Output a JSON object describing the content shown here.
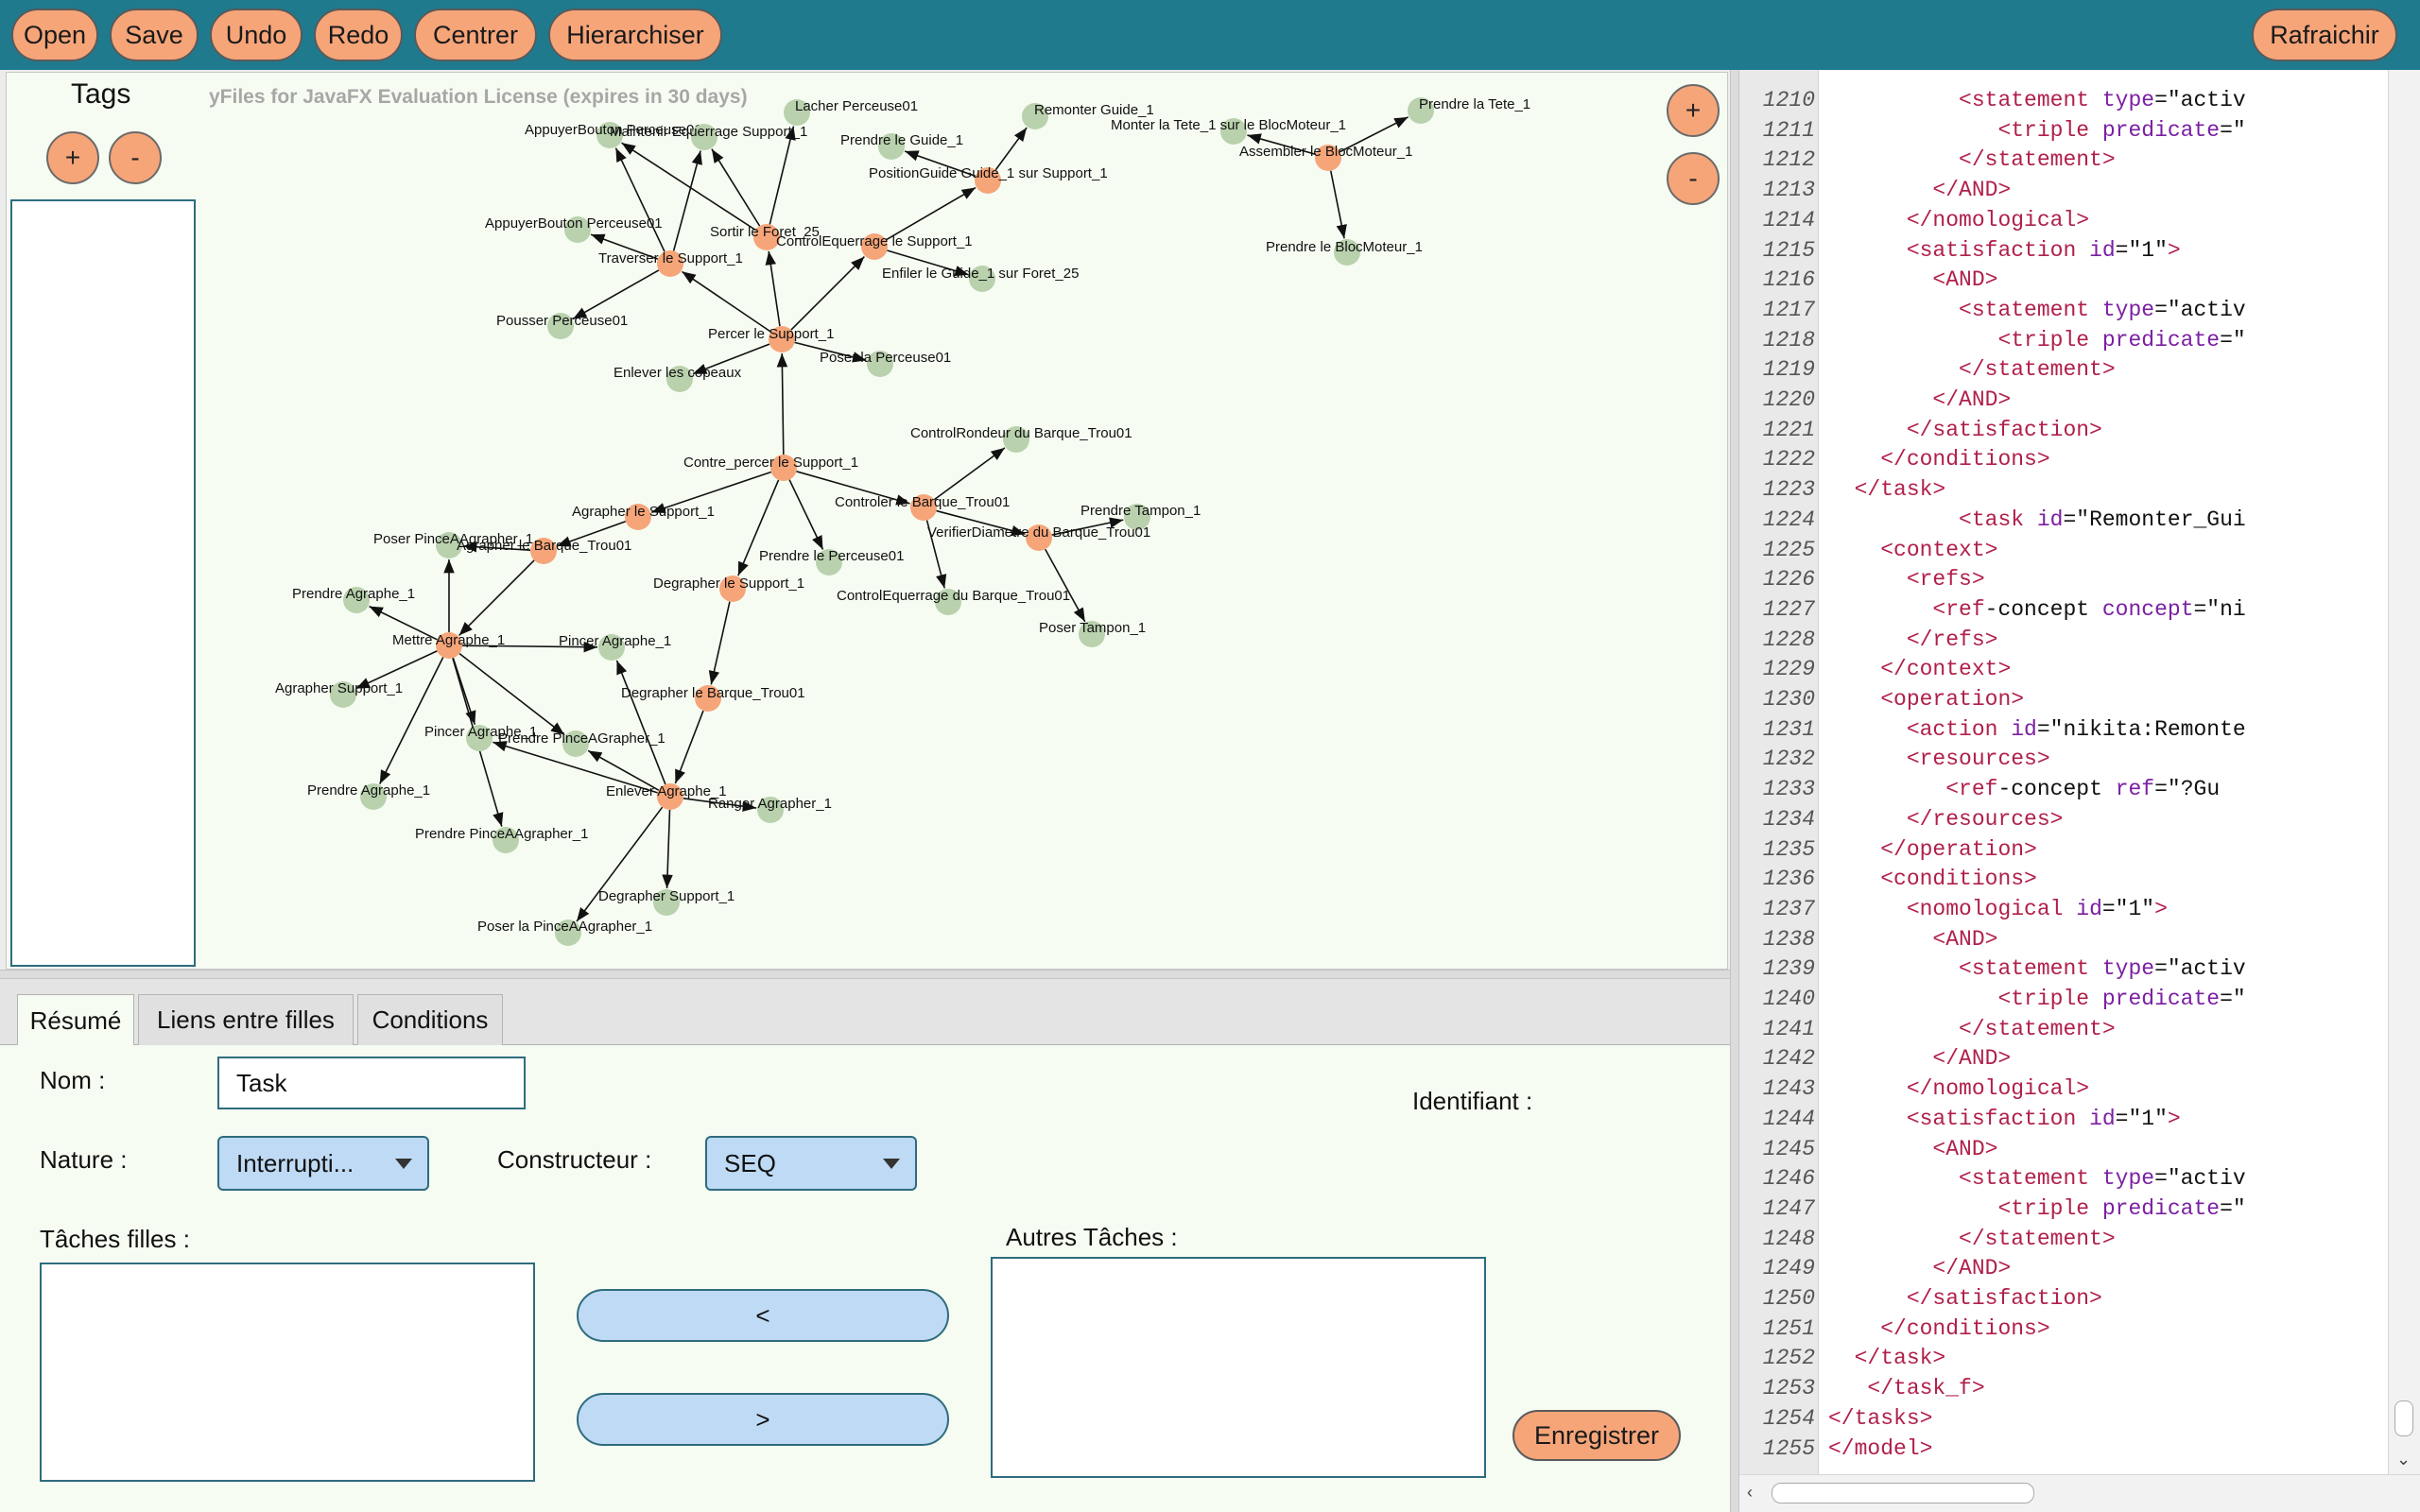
{
  "toolbar": {
    "open": "Open",
    "save": "Save",
    "undo": "Undo",
    "redo": "Redo",
    "center": "Centrer",
    "hierarchize": "Hierarchiser",
    "refresh": "Rafraichir"
  },
  "tags": {
    "title": "Tags",
    "add": "+",
    "remove": "-"
  },
  "graph": {
    "watermark": "yFiles for JavaFX Evaluation License (expires in 30 days)",
    "zoom_in": "+",
    "zoom_out": "-",
    "nodes": [
      {
        "id": "lacher",
        "label": "Lacher Perceuse01",
        "type": "leaf"
      },
      {
        "id": "appBtn1",
        "label": "AppuyerBouton Perceuse01",
        "type": "leaf"
      },
      {
        "id": "maintenir",
        "label": "Maintenir Equerrage Support_1",
        "type": "leaf"
      },
      {
        "id": "remonter",
        "label": "Remonter Guide_1",
        "type": "leaf"
      },
      {
        "id": "prendreGuide",
        "label": "Prendre le Guide_1",
        "type": "leaf"
      },
      {
        "id": "positionGuide",
        "label": "PositionGuide Guide_1 sur Support_1",
        "type": "task"
      },
      {
        "id": "appBtn2",
        "label": "AppuyerBouton Perceuse01",
        "type": "leaf"
      },
      {
        "id": "sortir",
        "label": "Sortir le Foret_25",
        "type": "task"
      },
      {
        "id": "controlEq",
        "label": "ControlEquerrage le Support_1",
        "type": "task"
      },
      {
        "id": "traverser",
        "label": "Traverser le Support_1",
        "type": "task"
      },
      {
        "id": "enfiler",
        "label": "Enfiler le Guide_1 sur Foret_25",
        "type": "leaf"
      },
      {
        "id": "pousser",
        "label": "Pousser Perceuse01",
        "type": "leaf"
      },
      {
        "id": "percer",
        "label": "Percer le Support_1",
        "type": "task"
      },
      {
        "id": "poser1",
        "label": "Poser la Perceuse01",
        "type": "leaf"
      },
      {
        "id": "enlever",
        "label": "Enlever les copeaux",
        "type": "leaf"
      },
      {
        "id": "contre",
        "label": "Contre_percer le Support_1",
        "type": "task"
      },
      {
        "id": "controlRond",
        "label": "ControlRondeur du Barque_Trou01",
        "type": "leaf"
      },
      {
        "id": "agraSup",
        "label": "Agrapher le Support_1",
        "type": "task"
      },
      {
        "id": "controler",
        "label": "Controler le Barque_Trou01",
        "type": "task"
      },
      {
        "id": "prendreTampon",
        "label": "Prendre Tampon_1",
        "type": "leaf"
      },
      {
        "id": "poserPince",
        "label": "Poser PinceAAgrapher_1",
        "type": "leaf"
      },
      {
        "id": "agraBarque",
        "label": "Agrapher le Barque_Trou01",
        "type": "task"
      },
      {
        "id": "verifier",
        "label": "VerifierDiametre du Barque_Trou01",
        "type": "task"
      },
      {
        "id": "prendrePerc",
        "label": "Prendre le Perceuse01",
        "type": "leaf"
      },
      {
        "id": "prendreAgr1",
        "label": "Prendre Agraphe_1",
        "type": "leaf"
      },
      {
        "id": "degrSup",
        "label": "Degrapher le Support_1",
        "type": "task"
      },
      {
        "id": "controlEqBar",
        "label": "ControlEquerrage du Barque_Trou01",
        "type": "leaf"
      },
      {
        "id": "poserTampon",
        "label": "Poser Tampon_1",
        "type": "leaf"
      },
      {
        "id": "mettre",
        "label": "Mettre Agraphe_1",
        "type": "task"
      },
      {
        "id": "pincer1",
        "label": "Pincer Agraphe_1",
        "type": "leaf"
      },
      {
        "id": "agraSup1",
        "label": "Agrapher Support_1",
        "type": "leaf"
      },
      {
        "id": "degrBarque",
        "label": "Degrapher le Barque_Trou01",
        "type": "task"
      },
      {
        "id": "pincer2",
        "label": "Pincer Agraphe_1",
        "type": "leaf"
      },
      {
        "id": "prendrePince",
        "label": "Prendre PinceAGrapher_1",
        "type": "leaf"
      },
      {
        "id": "prendreAgr2",
        "label": "Prendre Agraphe_1",
        "type": "leaf"
      },
      {
        "id": "enleverAgr",
        "label": "Enlever Agraphe_1",
        "type": "task"
      },
      {
        "id": "ranger",
        "label": "Ranger Agrapher_1",
        "type": "leaf"
      },
      {
        "id": "prendrePAA",
        "label": "Prendre PinceAAgrapher_1",
        "type": "leaf"
      },
      {
        "id": "degrSup1",
        "label": "Degrapher Support_1",
        "type": "leaf"
      },
      {
        "id": "poserPAA",
        "label": "Poser la PinceAAgrapher_1",
        "type": "leaf"
      },
      {
        "id": "prendreTete",
        "label": "Prendre la Tete_1",
        "type": "leaf"
      },
      {
        "id": "monter",
        "label": "Monter la Tete_1 sur le BlocMoteur_1",
        "type": "leaf"
      },
      {
        "id": "assembler",
        "label": "Assembler le BlocMoteur_1",
        "type": "task"
      },
      {
        "id": "prendreBloc",
        "label": "Prendre le BlocMoteur_1",
        "type": "leaf"
      }
    ]
  },
  "tabs": {
    "summary": "Résumé",
    "links": "Liens entre filles",
    "conditions": "Conditions"
  },
  "form": {
    "name_label": "Nom :",
    "name_value": "Task",
    "id_label": "Identifiant :",
    "nature_label": "Nature :",
    "nature_value": "Interrupti...",
    "constructor_label": "Constructeur :",
    "constructor_value": "SEQ",
    "children_label": "Tâches filles :",
    "others_label": "Autres Tâches :",
    "move_left": "<",
    "move_right": ">",
    "save": "Enregistrer"
  },
  "editor": {
    "lines": [
      {
        "n": "1210",
        "indent": "      ",
        "parts": [
          [
            "t",
            "<statement "
          ],
          [
            "a",
            "type"
          ],
          [
            "p",
            "=\"activ"
          ]
        ]
      },
      {
        "n": "1211",
        "indent": "         ",
        "parts": [
          [
            "t",
            "<triple "
          ],
          [
            "a",
            "predicate"
          ],
          [
            "p",
            "=\""
          ]
        ]
      },
      {
        "n": "1212",
        "indent": "      ",
        "parts": [
          [
            "t",
            "</statement>"
          ]
        ]
      },
      {
        "n": "1213",
        "indent": "    ",
        "parts": [
          [
            "t",
            "</AND>"
          ]
        ]
      },
      {
        "n": "1214",
        "indent": "  ",
        "parts": [
          [
            "t",
            "</nomological>"
          ]
        ]
      },
      {
        "n": "1215",
        "indent": "  ",
        "parts": [
          [
            "t",
            "<satisfaction "
          ],
          [
            "a",
            "id"
          ],
          [
            "p",
            "=\"1\""
          ],
          [
            "t",
            ">"
          ]
        ]
      },
      {
        "n": "1216",
        "indent": "    ",
        "parts": [
          [
            "t",
            "<AND>"
          ]
        ]
      },
      {
        "n": "1217",
        "indent": "      ",
        "parts": [
          [
            "t",
            "<statement "
          ],
          [
            "a",
            "type"
          ],
          [
            "p",
            "=\"activ"
          ]
        ]
      },
      {
        "n": "1218",
        "indent": "         ",
        "parts": [
          [
            "t",
            "<triple "
          ],
          [
            "a",
            "predicate"
          ],
          [
            "p",
            "=\""
          ]
        ]
      },
      {
        "n": "1219",
        "indent": "      ",
        "parts": [
          [
            "t",
            "</statement>"
          ]
        ]
      },
      {
        "n": "1220",
        "indent": "    ",
        "parts": [
          [
            "t",
            "</AND>"
          ]
        ]
      },
      {
        "n": "1221",
        "indent": "  ",
        "parts": [
          [
            "t",
            "</satisfaction>"
          ]
        ]
      },
      {
        "n": "1222",
        "indent": "",
        "parts": [
          [
            "t",
            "</conditions>"
          ]
        ]
      },
      {
        "n": "1223",
        "indent": "",
        "parts": [
          [
            "t",
            "</task>"
          ]
        ]
      },
      {
        "n": "1224",
        "indent": "      ",
        "parts": [
          [
            "t",
            "<task "
          ],
          [
            "a",
            "id"
          ],
          [
            "p",
            "=\"Remonter_Gui"
          ]
        ]
      },
      {
        "n": "1225",
        "indent": "",
        "parts": [
          [
            "t",
            "<context>"
          ]
        ]
      },
      {
        "n": "1226",
        "indent": "  ",
        "parts": [
          [
            "t",
            "<refs>"
          ]
        ]
      },
      {
        "n": "1227",
        "indent": "    ",
        "parts": [
          [
            "t",
            "<ref"
          ],
          [
            "p",
            "-concept "
          ],
          [
            "a",
            "concept"
          ],
          [
            "p",
            "=\"ni"
          ]
        ]
      },
      {
        "n": "1228",
        "indent": "  ",
        "parts": [
          [
            "t",
            "</refs>"
          ]
        ]
      },
      {
        "n": "1229",
        "indent": "",
        "parts": [
          [
            "t",
            "</context>"
          ]
        ]
      },
      {
        "n": "1230",
        "indent": "",
        "parts": [
          [
            "t",
            "<operation>"
          ]
        ]
      },
      {
        "n": "1231",
        "indent": "  ",
        "parts": [
          [
            "t",
            "<action "
          ],
          [
            "a",
            "id"
          ],
          [
            "p",
            "=\"nikita:Remonte"
          ]
        ]
      },
      {
        "n": "1232",
        "indent": "  ",
        "parts": [
          [
            "t",
            "<resources>"
          ]
        ]
      },
      {
        "n": "1233",
        "indent": "     ",
        "parts": [
          [
            "t",
            "<ref"
          ],
          [
            "p",
            "-concept "
          ],
          [
            "a",
            "ref"
          ],
          [
            "p",
            "=\"?Gu"
          ]
        ]
      },
      {
        "n": "1234",
        "indent": "  ",
        "parts": [
          [
            "t",
            "</resources>"
          ]
        ]
      },
      {
        "n": "1235",
        "indent": "",
        "parts": [
          [
            "t",
            "</operation>"
          ]
        ]
      },
      {
        "n": "1236",
        "indent": "",
        "parts": [
          [
            "t",
            "<conditions>"
          ]
        ]
      },
      {
        "n": "1237",
        "indent": "  ",
        "parts": [
          [
            "t",
            "<nomological "
          ],
          [
            "a",
            "id"
          ],
          [
            "p",
            "=\"1\""
          ],
          [
            "t",
            ">"
          ]
        ]
      },
      {
        "n": "1238",
        "indent": "    ",
        "parts": [
          [
            "t",
            "<AND>"
          ]
        ]
      },
      {
        "n": "1239",
        "indent": "      ",
        "parts": [
          [
            "t",
            "<statement "
          ],
          [
            "a",
            "type"
          ],
          [
            "p",
            "=\"activ"
          ]
        ]
      },
      {
        "n": "1240",
        "indent": "         ",
        "parts": [
          [
            "t",
            "<triple "
          ],
          [
            "a",
            "predicate"
          ],
          [
            "p",
            "=\""
          ]
        ]
      },
      {
        "n": "1241",
        "indent": "      ",
        "parts": [
          [
            "t",
            "</statement>"
          ]
        ]
      },
      {
        "n": "1242",
        "indent": "    ",
        "parts": [
          [
            "t",
            "</AND>"
          ]
        ]
      },
      {
        "n": "1243",
        "indent": "  ",
        "parts": [
          [
            "t",
            "</nomological>"
          ]
        ]
      },
      {
        "n": "1244",
        "indent": "  ",
        "parts": [
          [
            "t",
            "<satisfaction "
          ],
          [
            "a",
            "id"
          ],
          [
            "p",
            "=\"1\""
          ],
          [
            "t",
            ">"
          ]
        ]
      },
      {
        "n": "1245",
        "indent": "    ",
        "parts": [
          [
            "t",
            "<AND>"
          ]
        ]
      },
      {
        "n": "1246",
        "indent": "      ",
        "parts": [
          [
            "t",
            "<statement "
          ],
          [
            "a",
            "type"
          ],
          [
            "p",
            "=\"activ"
          ]
        ]
      },
      {
        "n": "1247",
        "indent": "         ",
        "parts": [
          [
            "t",
            "<triple "
          ],
          [
            "a",
            "predicate"
          ],
          [
            "p",
            "=\""
          ]
        ]
      },
      {
        "n": "1248",
        "indent": "      ",
        "parts": [
          [
            "t",
            "</statement>"
          ]
        ]
      },
      {
        "n": "1249",
        "indent": "    ",
        "parts": [
          [
            "t",
            "</AND>"
          ]
        ]
      },
      {
        "n": "1250",
        "indent": "  ",
        "parts": [
          [
            "t",
            "</satisfaction>"
          ]
        ]
      },
      {
        "n": "1251",
        "indent": "",
        "parts": [
          [
            "t",
            "</conditions>"
          ]
        ]
      },
      {
        "n": "1252",
        "indent": "",
        "parts": [
          [
            "t",
            "</task>"
          ]
        ]
      },
      {
        "n": "1253",
        "indent": "",
        "parts": [
          [
            "t",
            "</task_f>"
          ]
        ]
      },
      {
        "n": "1254",
        "indent": "",
        "parts": [
          [
            "t",
            "</tasks>"
          ]
        ]
      },
      {
        "n": "1255",
        "indent": "",
        "parts": [
          [
            "t",
            "</model>"
          ]
        ]
      }
    ]
  },
  "colors": {
    "toolbar": "#1f7a8e",
    "button": "#f6a579",
    "task_node": "#f6a579",
    "leaf_node": "#b9d1ad",
    "field_border": "#2e6c7e"
  }
}
